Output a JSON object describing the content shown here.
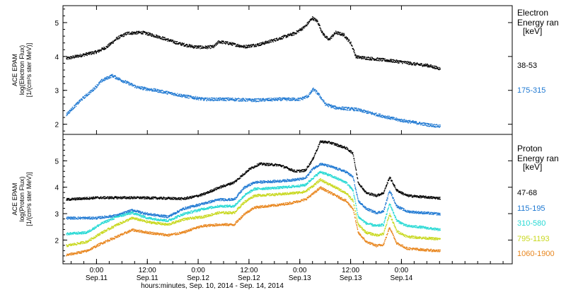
{
  "chart_data": [
    {
      "type": "scatter",
      "instrument": "ACE EPAM",
      "ylabel": "log(Electron Flux)",
      "yunits": "[1/(cm²s ster MeV)]",
      "legend_title": "Electron",
      "legend_subtitle": "Energy ran",
      "legend_units": "[keV]",
      "ylim": [
        1.7,
        5.5
      ],
      "yticks": [
        "2",
        "3",
        "4",
        "5"
      ],
      "grid": false,
      "series": [
        {
          "name": "38-53",
          "color": "#000000",
          "points": [
            [
              -0.3,
              3.95
            ],
            [
              0,
              4.15
            ],
            [
              0.1,
              4.3
            ],
            [
              0.2,
              4.55
            ],
            [
              0.3,
              4.7
            ],
            [
              0.45,
              4.72
            ],
            [
              0.6,
              4.6
            ],
            [
              0.8,
              4.4
            ],
            [
              0.95,
              4.3
            ],
            [
              1.05,
              4.28
            ],
            [
              1.15,
              4.3
            ],
            [
              1.2,
              4.45
            ],
            [
              1.3,
              4.4
            ],
            [
              1.45,
              4.3
            ],
            [
              1.6,
              4.37
            ],
            [
              1.75,
              4.5
            ],
            [
              1.85,
              4.6
            ],
            [
              1.95,
              4.7
            ],
            [
              2.05,
              4.9
            ],
            [
              2.12,
              5.15
            ],
            [
              2.17,
              5.05
            ],
            [
              2.22,
              4.7
            ],
            [
              2.28,
              4.5
            ],
            [
              2.35,
              4.72
            ],
            [
              2.43,
              4.65
            ],
            [
              2.5,
              4.4
            ],
            [
              2.55,
              4.0
            ],
            [
              2.7,
              3.95
            ],
            [
              2.85,
              3.9
            ],
            [
              3.0,
              3.85
            ],
            [
              3.15,
              3.78
            ],
            [
              3.25,
              3.75
            ],
            [
              3.38,
              3.65
            ]
          ]
        },
        {
          "name": "175-315",
          "color": "#1e78d2",
          "points": [
            [
              -0.3,
              2.3
            ],
            [
              -0.15,
              2.75
            ],
            [
              -0.05,
              3.0
            ],
            [
              0.05,
              3.3
            ],
            [
              0.15,
              3.45
            ],
            [
              0.25,
              3.3
            ],
            [
              0.4,
              3.1
            ],
            [
              0.6,
              3.0
            ],
            [
              0.85,
              2.85
            ],
            [
              1.05,
              2.75
            ],
            [
              1.3,
              2.75
            ],
            [
              1.55,
              2.72
            ],
            [
              1.8,
              2.75
            ],
            [
              2.0,
              2.75
            ],
            [
              2.08,
              2.85
            ],
            [
              2.13,
              3.05
            ],
            [
              2.18,
              2.9
            ],
            [
              2.25,
              2.6
            ],
            [
              2.35,
              2.5
            ],
            [
              2.55,
              2.45
            ],
            [
              2.75,
              2.3
            ],
            [
              2.95,
              2.15
            ],
            [
              3.15,
              2.05
            ],
            [
              3.25,
              2.0
            ],
            [
              3.38,
              1.95
            ]
          ]
        }
      ]
    },
    {
      "type": "scatter",
      "instrument": "ACE EPAM",
      "ylabel": "log(Proton Flux)",
      "yunits": "[1/(cm²s ster MeV)]",
      "legend_title": "Proton",
      "legend_subtitle": "Energy ran",
      "legend_units": "[keV]",
      "ylim": [
        1.1,
        6.0
      ],
      "yticks": [
        "2",
        "3",
        "4",
        "5"
      ],
      "grid": false,
      "series": [
        {
          "name": "47-68",
          "color": "#000000",
          "points": [
            [
              -0.3,
              3.55
            ],
            [
              0,
              3.62
            ],
            [
              0.4,
              3.62
            ],
            [
              0.65,
              3.6
            ],
            [
              0.85,
              3.58
            ],
            [
              0.95,
              3.65
            ],
            [
              1.05,
              3.75
            ],
            [
              1.2,
              4.0
            ],
            [
              1.35,
              4.2
            ],
            [
              1.5,
              4.7
            ],
            [
              1.6,
              4.9
            ],
            [
              1.8,
              4.85
            ],
            [
              1.95,
              4.62
            ],
            [
              2.05,
              4.65
            ],
            [
              2.12,
              5.05
            ],
            [
              2.2,
              5.75
            ],
            [
              2.3,
              5.7
            ],
            [
              2.45,
              5.5
            ],
            [
              2.52,
              5.3
            ],
            [
              2.57,
              4.2
            ],
            [
              2.65,
              3.8
            ],
            [
              2.75,
              3.7
            ],
            [
              2.82,
              3.8
            ],
            [
              2.88,
              4.4
            ],
            [
              2.95,
              3.9
            ],
            [
              3.05,
              3.7
            ],
            [
              3.2,
              3.65
            ],
            [
              3.38,
              3.6
            ]
          ]
        },
        {
          "name": "115-195",
          "color": "#1e78d2",
          "points": [
            [
              -0.3,
              2.85
            ],
            [
              0,
              2.85
            ],
            [
              0.2,
              2.95
            ],
            [
              0.35,
              3.15
            ],
            [
              0.5,
              3.0
            ],
            [
              0.7,
              2.9
            ],
            [
              0.85,
              3.2
            ],
            [
              0.95,
              3.3
            ],
            [
              1.05,
              3.4
            ],
            [
              1.2,
              3.55
            ],
            [
              1.35,
              3.55
            ],
            [
              1.45,
              4.0
            ],
            [
              1.55,
              4.2
            ],
            [
              1.8,
              4.25
            ],
            [
              1.95,
              4.3
            ],
            [
              2.05,
              4.35
            ],
            [
              2.12,
              4.7
            ],
            [
              2.2,
              4.9
            ],
            [
              2.3,
              4.8
            ],
            [
              2.45,
              4.6
            ],
            [
              2.52,
              4.4
            ],
            [
              2.57,
              3.5
            ],
            [
              2.65,
              3.2
            ],
            [
              2.75,
              3.05
            ],
            [
              2.82,
              3.1
            ],
            [
              2.88,
              3.9
            ],
            [
              2.95,
              3.3
            ],
            [
              3.05,
              3.1
            ],
            [
              3.2,
              3.05
            ],
            [
              3.38,
              3.0
            ]
          ]
        },
        {
          "name": "310-580",
          "color": "#27d9d4",
          "points": [
            [
              -0.3,
              2.25
            ],
            [
              -0.1,
              2.3
            ],
            [
              0.05,
              2.65
            ],
            [
              0.2,
              2.9
            ],
            [
              0.35,
              3.05
            ],
            [
              0.5,
              2.85
            ],
            [
              0.7,
              2.75
            ],
            [
              0.85,
              3.0
            ],
            [
              0.95,
              3.1
            ],
            [
              1.05,
              3.2
            ],
            [
              1.2,
              3.3
            ],
            [
              1.35,
              3.3
            ],
            [
              1.45,
              3.7
            ],
            [
              1.55,
              3.95
            ],
            [
              1.8,
              4.0
            ],
            [
              1.95,
              4.05
            ],
            [
              2.05,
              4.1
            ],
            [
              2.12,
              4.35
            ],
            [
              2.2,
              4.6
            ],
            [
              2.3,
              4.45
            ],
            [
              2.45,
              4.2
            ],
            [
              2.52,
              3.9
            ],
            [
              2.57,
              2.9
            ],
            [
              2.65,
              2.65
            ],
            [
              2.75,
              2.55
            ],
            [
              2.82,
              2.6
            ],
            [
              2.88,
              3.4
            ],
            [
              2.95,
              2.75
            ],
            [
              3.05,
              2.55
            ],
            [
              3.2,
              2.5
            ],
            [
              3.38,
              2.4
            ]
          ]
        },
        {
          "name": "795-1193",
          "color": "#c8d81e",
          "points": [
            [
              -0.3,
              1.8
            ],
            [
              -0.1,
              1.95
            ],
            [
              0.05,
              2.3
            ],
            [
              0.2,
              2.6
            ],
            [
              0.35,
              2.85
            ],
            [
              0.5,
              2.7
            ],
            [
              0.7,
              2.6
            ],
            [
              0.85,
              2.8
            ],
            [
              0.95,
              2.85
            ],
            [
              1.05,
              2.9
            ],
            [
              1.2,
              3.05
            ],
            [
              1.35,
              3.05
            ],
            [
              1.45,
              3.45
            ],
            [
              1.55,
              3.7
            ],
            [
              1.8,
              3.75
            ],
            [
              1.95,
              3.8
            ],
            [
              2.05,
              3.85
            ],
            [
              2.12,
              4.05
            ],
            [
              2.2,
              4.3
            ],
            [
              2.3,
              4.1
            ],
            [
              2.45,
              3.8
            ],
            [
              2.52,
              3.5
            ],
            [
              2.57,
              2.6
            ],
            [
              2.65,
              2.3
            ],
            [
              2.75,
              2.2
            ],
            [
              2.82,
              2.25
            ],
            [
              2.88,
              3.0
            ],
            [
              2.95,
              2.35
            ],
            [
              3.05,
              2.15
            ],
            [
              3.2,
              2.1
            ],
            [
              3.38,
              2.05
            ]
          ]
        },
        {
          "name": "1060-1900",
          "color": "#e8861e",
          "points": [
            [
              -0.3,
              1.45
            ],
            [
              -0.1,
              1.6
            ],
            [
              0.05,
              1.9
            ],
            [
              0.2,
              2.15
            ],
            [
              0.35,
              2.4
            ],
            [
              0.5,
              2.3
            ],
            [
              0.7,
              2.2
            ],
            [
              0.85,
              2.3
            ],
            [
              0.95,
              2.45
            ],
            [
              1.05,
              2.55
            ],
            [
              1.2,
              2.6
            ],
            [
              1.35,
              2.6
            ],
            [
              1.45,
              3.0
            ],
            [
              1.55,
              3.25
            ],
            [
              1.8,
              3.35
            ],
            [
              1.95,
              3.45
            ],
            [
              2.05,
              3.55
            ],
            [
              2.12,
              3.75
            ],
            [
              2.2,
              4.0
            ],
            [
              2.3,
              3.8
            ],
            [
              2.45,
              3.5
            ],
            [
              2.52,
              3.2
            ],
            [
              2.57,
              2.3
            ],
            [
              2.65,
              1.95
            ],
            [
              2.75,
              1.8
            ],
            [
              2.82,
              1.85
            ],
            [
              2.88,
              2.5
            ],
            [
              2.95,
              1.9
            ],
            [
              3.05,
              1.7
            ],
            [
              3.2,
              1.65
            ],
            [
              3.38,
              1.6
            ]
          ]
        }
      ]
    }
  ],
  "xaxis": {
    "xlim": [
      -0.33,
      4.09
    ],
    "ticks": [
      {
        "x": 0,
        "time": "0:00",
        "date": "Sep.11"
      },
      {
        "x": 0.5,
        "time": "12:00",
        "date": "Sep.11"
      },
      {
        "x": 1,
        "time": "0:00",
        "date": "Sep.12"
      },
      {
        "x": 1.5,
        "time": "12:00",
        "date": "Sep.12"
      },
      {
        "x": 2,
        "time": "0:00",
        "date": "Sep.13"
      },
      {
        "x": 2.5,
        "time": "12:00",
        "date": "Sep.13"
      },
      {
        "x": 3,
        "time": "0:00",
        "date": "Sep.14"
      }
    ],
    "label": "hours:minutes, Sep. 10, 2014 - Sep. 14, 2014"
  }
}
